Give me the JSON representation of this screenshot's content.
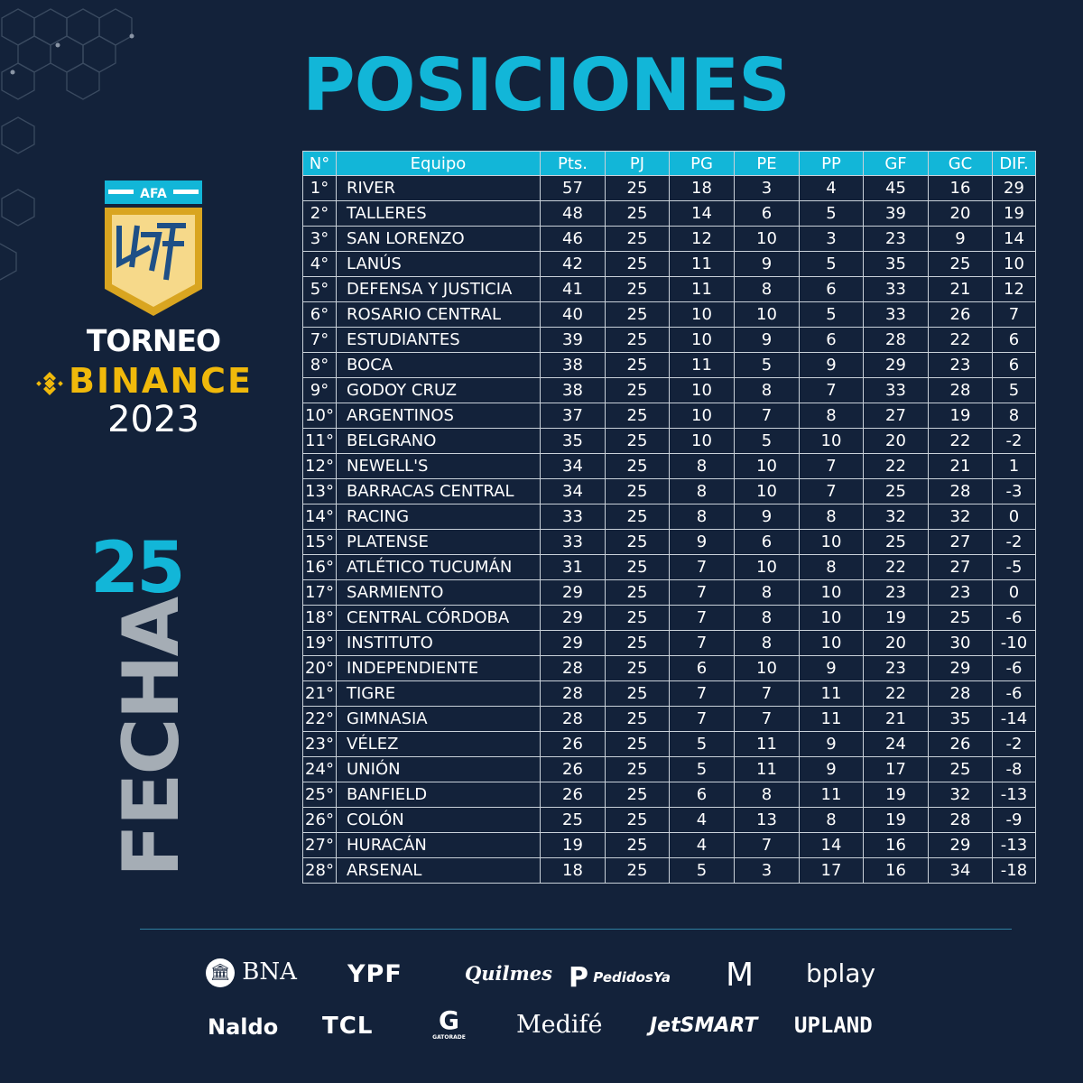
{
  "title": "POSICIONES",
  "brand": {
    "afa": "AFA",
    "torneo": "TORNEO",
    "binance": "BINANCE",
    "year": "2023",
    "colors": {
      "cyan": "#12b6d8",
      "gold": "#f0b90b",
      "bg": "#13223a",
      "gray": "#a5adb5"
    }
  },
  "round": {
    "number": "25",
    "label": "FECHA"
  },
  "table": {
    "headers": [
      "N°",
      "Equipo",
      "Pts.",
      "PJ",
      "PG",
      "PE",
      "PP",
      "GF",
      "GC",
      "DIF."
    ],
    "rows": [
      [
        "1°",
        "RIVER",
        "57",
        "25",
        "18",
        "3",
        "4",
        "45",
        "16",
        "29"
      ],
      [
        "2°",
        "TALLERES",
        "48",
        "25",
        "14",
        "6",
        "5",
        "39",
        "20",
        "19"
      ],
      [
        "3°",
        "SAN LORENZO",
        "46",
        "25",
        "12",
        "10",
        "3",
        "23",
        "9",
        "14"
      ],
      [
        "4°",
        "LANÚS",
        "42",
        "25",
        "11",
        "9",
        "5",
        "35",
        "25",
        "10"
      ],
      [
        "5°",
        "DEFENSA Y JUSTICIA",
        "41",
        "25",
        "11",
        "8",
        "6",
        "33",
        "21",
        "12"
      ],
      [
        "6°",
        "ROSARIO CENTRAL",
        "40",
        "25",
        "10",
        "10",
        "5",
        "33",
        "26",
        "7"
      ],
      [
        "7°",
        "ESTUDIANTES",
        "39",
        "25",
        "10",
        "9",
        "6",
        "28",
        "22",
        "6"
      ],
      [
        "8°",
        "BOCA",
        "38",
        "25",
        "11",
        "5",
        "9",
        "29",
        "23",
        "6"
      ],
      [
        "9°",
        "GODOY CRUZ",
        "38",
        "25",
        "10",
        "8",
        "7",
        "33",
        "28",
        "5"
      ],
      [
        "10°",
        "ARGENTINOS",
        "37",
        "25",
        "10",
        "7",
        "8",
        "27",
        "19",
        "8"
      ],
      [
        "11°",
        "BELGRANO",
        "35",
        "25",
        "10",
        "5",
        "10",
        "20",
        "22",
        "-2"
      ],
      [
        "12°",
        "NEWELL'S",
        "34",
        "25",
        "8",
        "10",
        "7",
        "22",
        "21",
        "1"
      ],
      [
        "13°",
        "BARRACAS CENTRAL",
        "34",
        "25",
        "8",
        "10",
        "7",
        "25",
        "28",
        "-3"
      ],
      [
        "14°",
        "RACING",
        "33",
        "25",
        "8",
        "9",
        "8",
        "32",
        "32",
        "0"
      ],
      [
        "15°",
        "PLATENSE",
        "33",
        "25",
        "9",
        "6",
        "10",
        "25",
        "27",
        "-2"
      ],
      [
        "16°",
        "ATLÉTICO TUCUMÁN",
        "31",
        "25",
        "7",
        "10",
        "8",
        "22",
        "27",
        "-5"
      ],
      [
        "17°",
        "SARMIENTO",
        "29",
        "25",
        "7",
        "8",
        "10",
        "23",
        "23",
        "0"
      ],
      [
        "18°",
        "CENTRAL CÓRDOBA",
        "29",
        "25",
        "7",
        "8",
        "10",
        "19",
        "25",
        "-6"
      ],
      [
        "19°",
        "INSTITUTO",
        "29",
        "25",
        "7",
        "8",
        "10",
        "20",
        "30",
        "-10"
      ],
      [
        "20°",
        "INDEPENDIENTE",
        "28",
        "25",
        "6",
        "10",
        "9",
        "23",
        "29",
        "-6"
      ],
      [
        "21°",
        "TIGRE",
        "28",
        "25",
        "7",
        "7",
        "11",
        "22",
        "28",
        "-6"
      ],
      [
        "22°",
        "GIMNASIA",
        "28",
        "25",
        "7",
        "7",
        "11",
        "21",
        "35",
        "-14"
      ],
      [
        "23°",
        "VÉLEZ",
        "26",
        "25",
        "5",
        "11",
        "9",
        "24",
        "26",
        "-2"
      ],
      [
        "24°",
        "UNIÓN",
        "26",
        "25",
        "5",
        "11",
        "9",
        "17",
        "25",
        "-8"
      ],
      [
        "25°",
        "BANFIELD",
        "26",
        "25",
        "6",
        "8",
        "11",
        "19",
        "32",
        "-13"
      ],
      [
        "26°",
        "COLÓN",
        "25",
        "25",
        "4",
        "13",
        "8",
        "19",
        "28",
        "-9"
      ],
      [
        "27°",
        "HURACÁN",
        "19",
        "25",
        "4",
        "7",
        "14",
        "16",
        "29",
        "-13"
      ],
      [
        "28°",
        "ARSENAL",
        "18",
        "25",
        "5",
        "3",
        "17",
        "16",
        "34",
        "-18"
      ]
    ]
  },
  "sponsors": [
    "BNA",
    "YPF",
    "Quilmes",
    "PedidosYa",
    "McDonald's",
    "bplay",
    "Naldo",
    "TCL",
    "GATORADE",
    "Medifé",
    "JetSMART",
    "UPLAND"
  ]
}
